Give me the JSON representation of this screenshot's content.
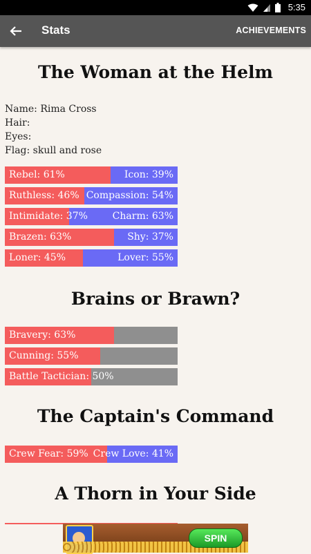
{
  "status_bar": {
    "time": "5:35",
    "icons": [
      "wifi-icon",
      "signal-icon",
      "battery-icon"
    ]
  },
  "app_bar": {
    "back_icon": "arrow-back-icon",
    "title": "Stats",
    "action": "ACHIEVEMENTS"
  },
  "sections": {
    "helm": {
      "title": "The Woman at the Helm"
    },
    "brains": {
      "title": "Brains or Brawn?"
    },
    "command": {
      "title": "The Captain's Command"
    },
    "thorn": {
      "title": "A Thorn in Your Side"
    }
  },
  "info": {
    "name": "Name: Rima Cross",
    "hair": "Hair:",
    "eyes": "Eyes:",
    "flag": "Flag: skull and rose"
  },
  "opposed_stats": [
    {
      "left": "Rebel: 61%",
      "right": "Icon: 39%",
      "value": 61
    },
    {
      "left": "Ruthless: 46%",
      "right": "Compassion: 54%",
      "value": 46
    },
    {
      "left": "Intimidate: 37%",
      "right": "Charm: 63%",
      "value": 37
    },
    {
      "left": "Brazen: 63%",
      "right": "Shy: 37%",
      "value": 63
    },
    {
      "left": "Loner: 45%",
      "right": "Lover: 55%",
      "value": 45
    }
  ],
  "single_stats": [
    {
      "label": "Bravery: 63%",
      "value": 63
    },
    {
      "label": "Cunning: 55%",
      "value": 55
    },
    {
      "label": "Battle Tactician: 50%",
      "value": 50
    }
  ],
  "crew_stats": [
    {
      "left": "Crew Fear: 59%",
      "right": "Crew Love: 41%",
      "value": 59
    }
  ],
  "ad": {
    "button": "SPIN"
  },
  "colors": {
    "left": "#f45c5c",
    "right": "#6a6af5",
    "neutral": "#8f8f8f",
    "appbar": "#555555"
  }
}
